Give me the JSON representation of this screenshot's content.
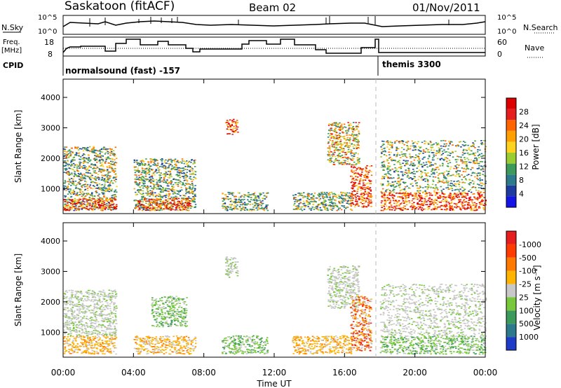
{
  "header": {
    "station": "Saskatoon (fitACF)",
    "beam": "Beam 02",
    "date": "01/Nov/2011"
  },
  "panels": {
    "nsky": {
      "label": "N.Sky",
      "ticks": [
        "10^5",
        "10^0"
      ],
      "right_label": "N.Search",
      "right_ticks": [
        "10^5",
        "10^0"
      ]
    },
    "freq": {
      "label_line1": "Freq.",
      "label_line2": "[MHz]",
      "ticks": [
        "18",
        "8"
      ],
      "right_label": "Nave",
      "right_ticks": [
        "60",
        "0"
      ]
    },
    "cpid": {
      "label": "CPID",
      "segments": [
        {
          "name": "normalsound (fast) -157",
          "start_hour": 0
        },
        {
          "name": "themis 3300",
          "start_hour": 17.9
        }
      ]
    }
  },
  "chart_data": [
    {
      "type": "heatmap",
      "title": "",
      "xlabel": "Time UT",
      "ylabel": "Slant Range [km]",
      "x_ticks": [
        "00:00",
        "04:00",
        "08:00",
        "12:00",
        "16:00",
        "20:00",
        "00:00"
      ],
      "y_ticks": [
        "1000",
        "2000",
        "3000",
        "4000"
      ],
      "xlim_hours": [
        0,
        24
      ],
      "ylim_km": [
        180,
        4600
      ],
      "colorbar": {
        "label": "Power [dB]",
        "tick_labels": [
          "4",
          "8",
          "12",
          "16",
          "20",
          "24",
          "28"
        ],
        "colors": [
          "#1414e6",
          "#1e3ca0",
          "#2d7a8c",
          "#3c9a5a",
          "#9acd32",
          "#ffd21e",
          "#ffa000",
          "#ff6400",
          "#e61e1e",
          "#dc0000"
        ]
      },
      "regions": [
        {
          "t0": 0.0,
          "t1": 3.0,
          "r0": 300,
          "r1": 2400,
          "level": "mid"
        },
        {
          "t0": 0.0,
          "t1": 3.0,
          "r0": 300,
          "r1": 700,
          "level": "high"
        },
        {
          "t0": 4.0,
          "t1": 7.5,
          "r0": 300,
          "r1": 2000,
          "level": "mid"
        },
        {
          "t0": 4.2,
          "t1": 7.2,
          "r0": 300,
          "r1": 700,
          "level": "high"
        },
        {
          "t0": 9.2,
          "t1": 9.9,
          "r0": 2800,
          "r1": 3300,
          "level": "high"
        },
        {
          "t0": 9.0,
          "t1": 11.6,
          "r0": 300,
          "r1": 900,
          "level": "mid"
        },
        {
          "t0": 13.0,
          "t1": 16.4,
          "r0": 300,
          "r1": 900,
          "level": "mid"
        },
        {
          "t0": 15.0,
          "t1": 16.8,
          "r0": 1800,
          "r1": 3200,
          "level": "band"
        },
        {
          "t0": 16.3,
          "t1": 17.5,
          "r0": 400,
          "r1": 1800,
          "level": "high"
        },
        {
          "t0": 18.0,
          "t1": 24.0,
          "r0": 300,
          "r1": 900,
          "level": "high"
        },
        {
          "t0": 18.0,
          "t1": 24.0,
          "r0": 900,
          "r1": 2600,
          "level": "mid"
        }
      ]
    },
    {
      "type": "heatmap",
      "title": "",
      "xlabel": "Time UT",
      "ylabel": "Slant Range [km]",
      "x_ticks": [
        "00:00",
        "04:00",
        "08:00",
        "12:00",
        "16:00",
        "20:00",
        "00:00"
      ],
      "y_ticks": [
        "1000",
        "2000",
        "3000",
        "4000"
      ],
      "xlim_hours": [
        0,
        24
      ],
      "ylim_km": [
        180,
        4600
      ],
      "colorbar": {
        "label": "Velocity [m s⁻¹]",
        "tick_labels": [
          "1000",
          "500",
          "100",
          "25",
          "-25",
          "-100",
          "-500",
          "-1000"
        ],
        "colors": [
          "#1e3cc8",
          "#2d7a8c",
          "#3c9a5a",
          "#78c83c",
          "#c8c8c8",
          "#ffb400",
          "#ff7800",
          "#ff3c00",
          "#e61e1e"
        ]
      },
      "regions": [
        {
          "t0": 0.0,
          "t1": 3.0,
          "r0": 300,
          "r1": 900,
          "level": "orange"
        },
        {
          "t0": 0.0,
          "t1": 3.0,
          "r0": 900,
          "r1": 2400,
          "level": "grey"
        },
        {
          "t0": 4.0,
          "t1": 7.5,
          "r0": 300,
          "r1": 900,
          "level": "orange"
        },
        {
          "t0": 5.0,
          "t1": 7.0,
          "r0": 1200,
          "r1": 2200,
          "level": "green"
        },
        {
          "t0": 9.2,
          "t1": 9.9,
          "r0": 2800,
          "r1": 3500,
          "level": "grey"
        },
        {
          "t0": 9.0,
          "t1": 11.6,
          "r0": 300,
          "r1": 900,
          "level": "lightgreen"
        },
        {
          "t0": 13.0,
          "t1": 16.4,
          "r0": 300,
          "r1": 900,
          "level": "orange"
        },
        {
          "t0": 15.0,
          "t1": 16.8,
          "r0": 1800,
          "r1": 3200,
          "level": "grey"
        },
        {
          "t0": 16.3,
          "t1": 17.5,
          "r0": 400,
          "r1": 2200,
          "level": "red"
        },
        {
          "t0": 18.0,
          "t1": 24.0,
          "r0": 300,
          "r1": 900,
          "level": "lightgreen"
        },
        {
          "t0": 18.0,
          "t1": 24.0,
          "r0": 900,
          "r1": 2600,
          "level": "grey"
        }
      ]
    }
  ]
}
